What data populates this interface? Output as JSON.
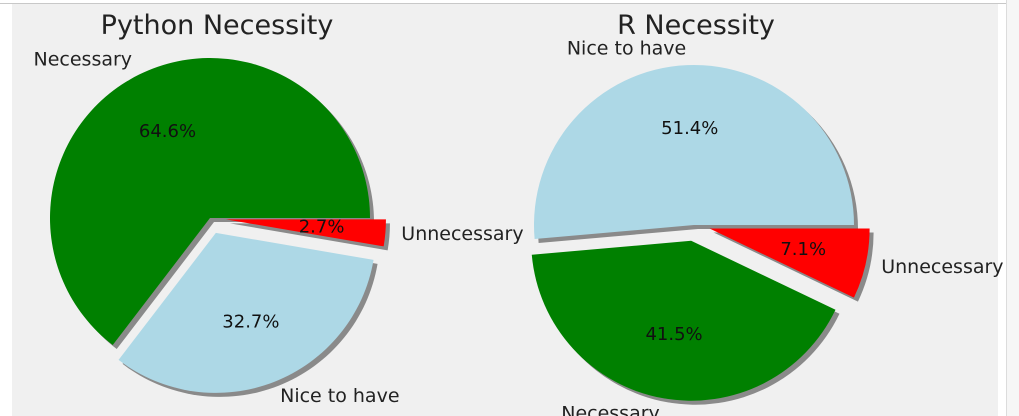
{
  "chart_data": [
    {
      "type": "pie",
      "title": "Python Necessity",
      "categories": [
        "Necessary",
        "Nice to have",
        "Unnecessary"
      ],
      "values": [
        64.6,
        32.7,
        2.7
      ],
      "value_labels": [
        "64.6%",
        "32.7%",
        "2.7%"
      ],
      "colors": [
        "#008000",
        "#add8e6",
        "#ff0000"
      ],
      "exploded": [
        "Nice to have",
        "Unnecessary"
      ],
      "shadow": true,
      "start_angle": 0
    },
    {
      "type": "pie",
      "title": "R Necessity",
      "categories": [
        "Nice to have",
        "Necessary",
        "Unnecessary"
      ],
      "values": [
        51.4,
        41.5,
        7.1
      ],
      "value_labels": [
        "51.4%",
        "41.5%",
        "7.1%"
      ],
      "colors": [
        "#add8e6",
        "#008000",
        "#ff0000"
      ],
      "exploded": [
        "Necessary",
        "Unnecessary"
      ],
      "shadow": true,
      "start_angle": 0
    }
  ]
}
